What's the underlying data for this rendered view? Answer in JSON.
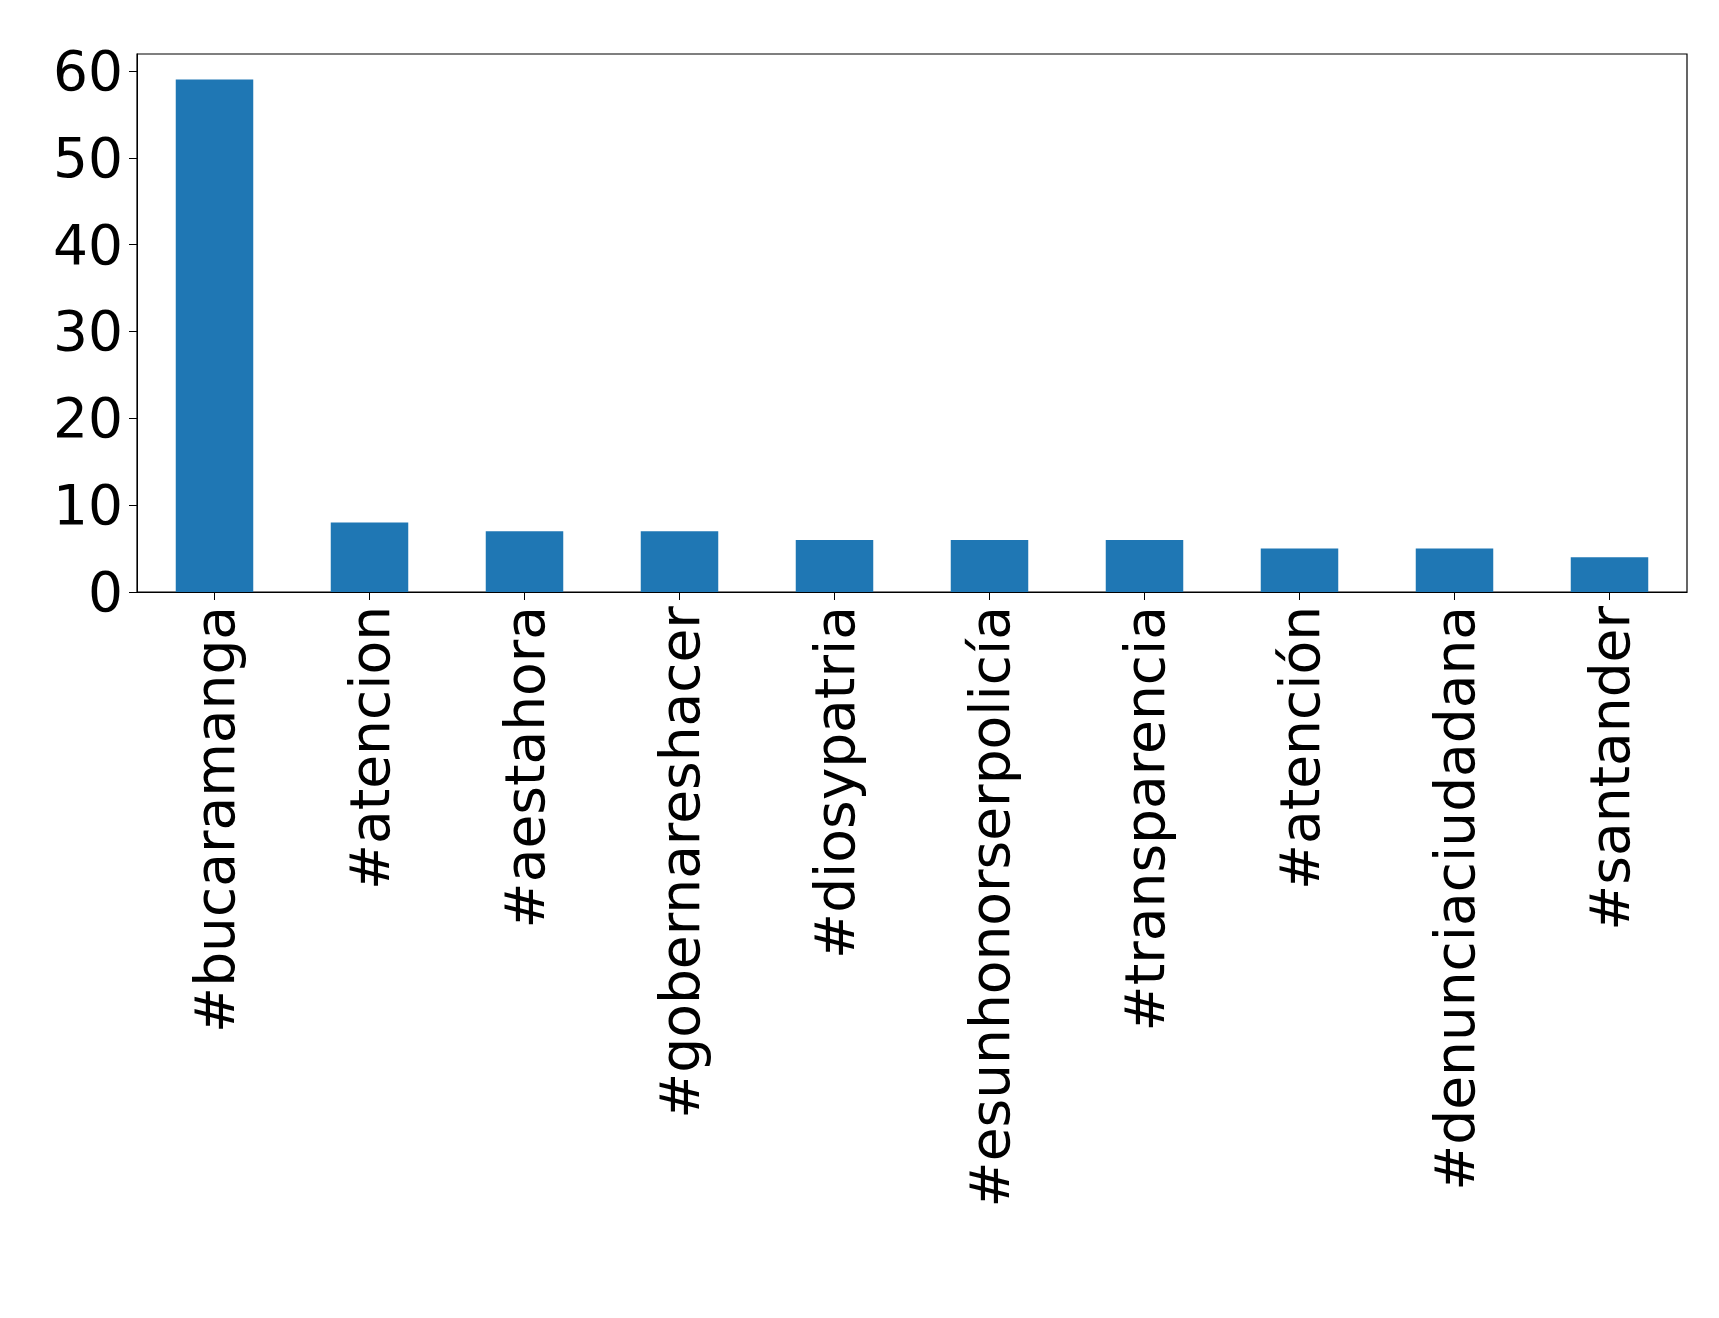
{
  "chart_data": {
    "type": "bar",
    "categories": [
      "#bucaramanga",
      "#atencion",
      "#aestahora",
      "#gobernareshacer",
      "#diosypatria",
      "#esunhonorserpolicía",
      "#transparencia",
      "#atención",
      "#denunciaciudadana",
      "#santander"
    ],
    "values": [
      59,
      8,
      7,
      7,
      6,
      6,
      6,
      5,
      5,
      4
    ],
    "color": "#1f77b4",
    "ylim": [
      0,
      61.95
    ],
    "yticks": [
      0,
      10,
      20,
      30,
      40,
      50,
      60
    ],
    "grid": false
  }
}
